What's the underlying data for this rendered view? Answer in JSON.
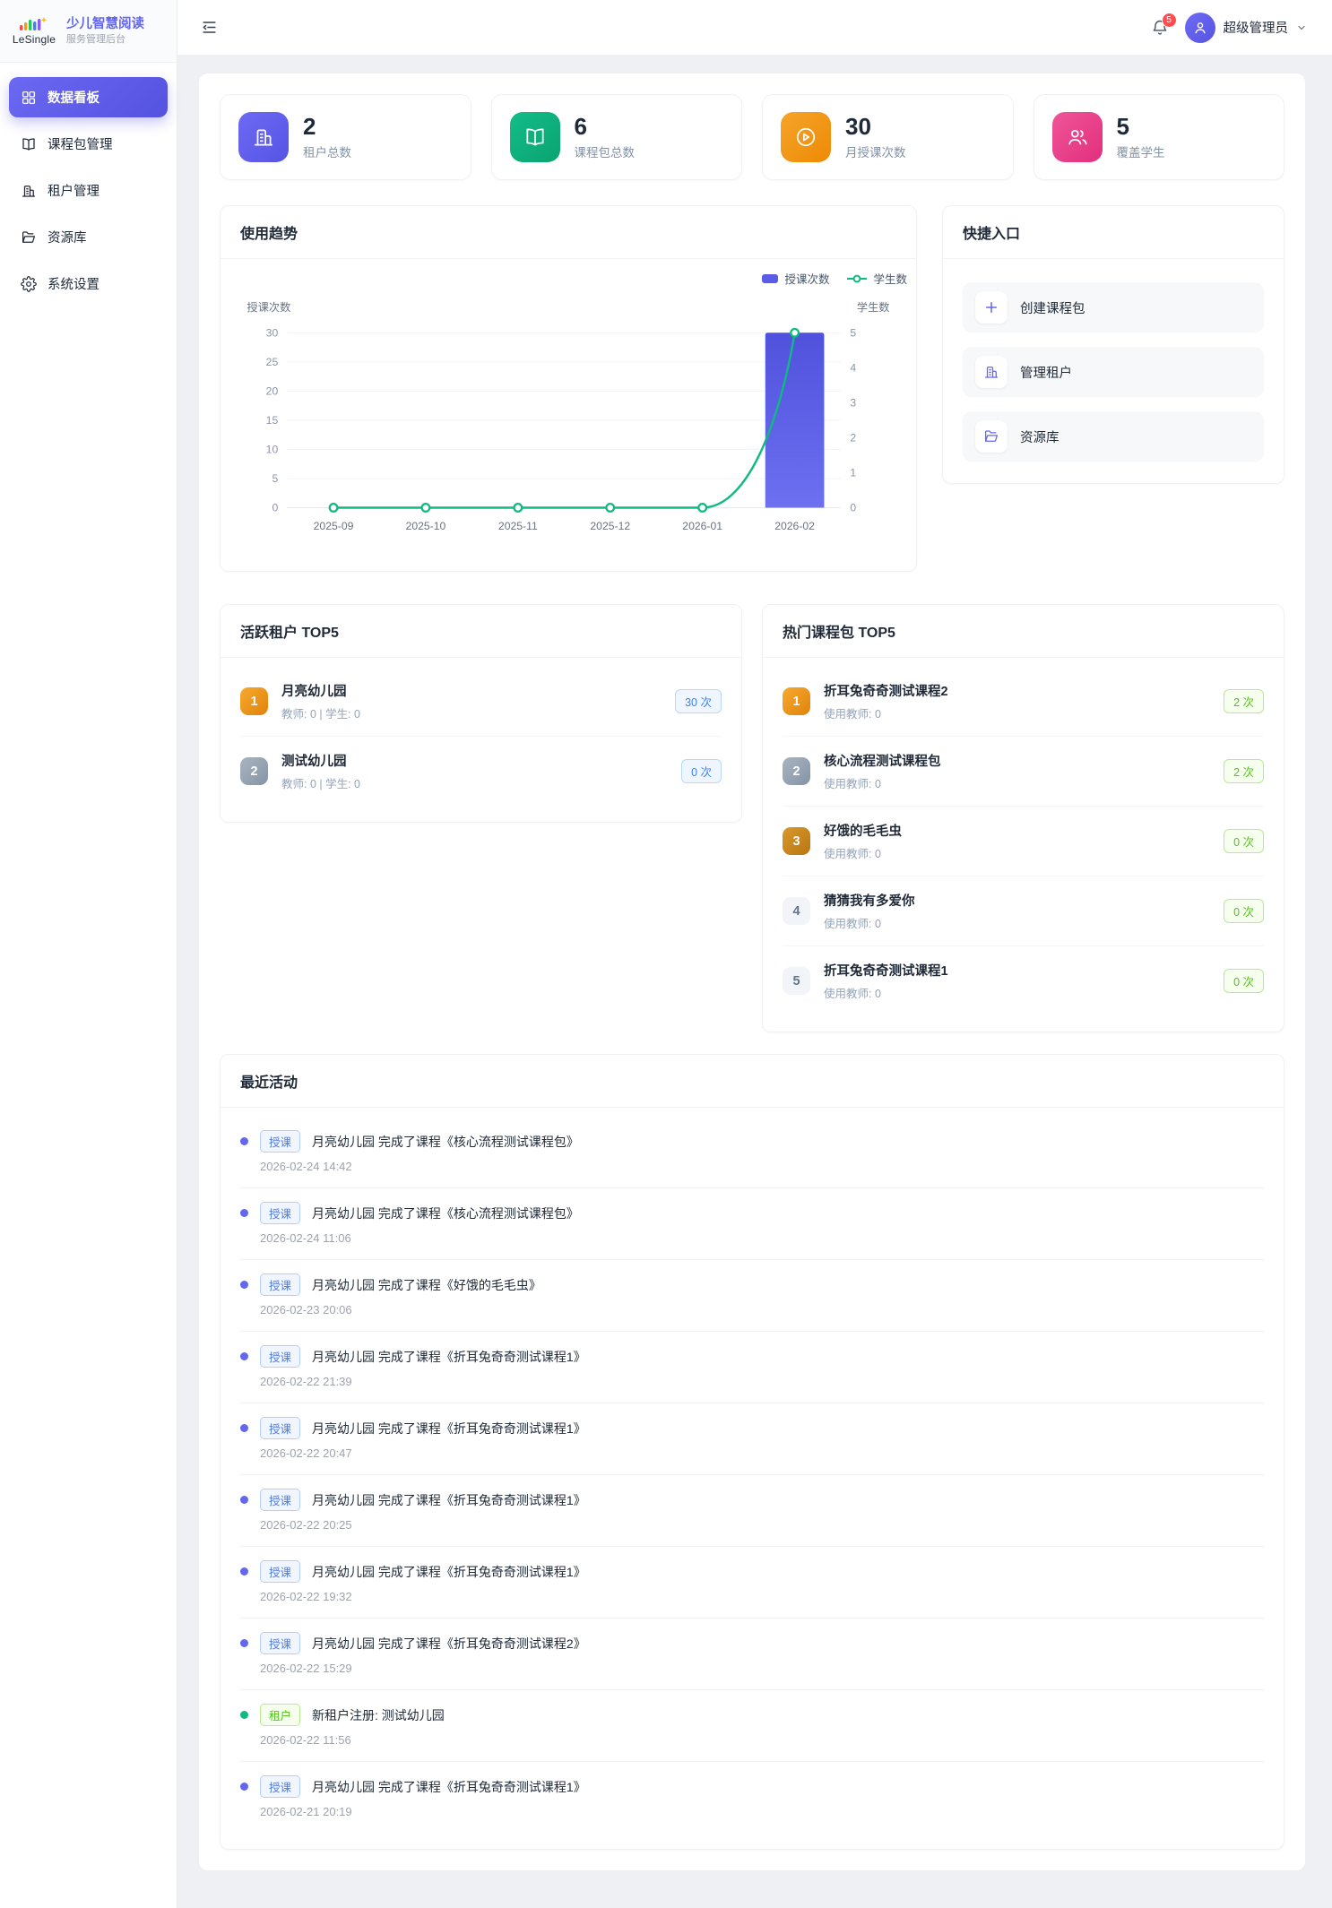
{
  "brand": {
    "logo": "LeSingle",
    "title": "少儿智慧阅读",
    "subtitle": "服务管理后台"
  },
  "sidebar": {
    "items": [
      {
        "label": "数据看板",
        "active": true
      },
      {
        "label": "课程包管理"
      },
      {
        "label": "租户管理"
      },
      {
        "label": "资源库"
      },
      {
        "label": "系统设置"
      }
    ]
  },
  "header": {
    "notification_count": "5",
    "user_name": "超级管理员"
  },
  "stats": [
    {
      "value": "2",
      "label": "租户总数",
      "accent": "#5b5ce6",
      "icon": "building-icon"
    },
    {
      "value": "6",
      "label": "课程包总数",
      "accent": "#10b981",
      "icon": "book-icon"
    },
    {
      "value": "30",
      "label": "月授课次数",
      "accent": "#f59e0b",
      "icon": "play-circle-icon"
    },
    {
      "value": "5",
      "label": "覆盖学生",
      "accent": "#ec4899",
      "icon": "users-icon"
    }
  ],
  "usage_trend": {
    "title": "使用趋势",
    "legend": [
      "授课次数",
      "学生数"
    ]
  },
  "chart_data": {
    "type": "bar",
    "title": "使用趋势",
    "categories": [
      "2025-09",
      "2025-10",
      "2025-11",
      "2025-12",
      "2026-01",
      "2026-02"
    ],
    "series": [
      {
        "name": "授课次数",
        "render": "bar",
        "axis": "left",
        "color": "#5b5ce6",
        "values": [
          0,
          0,
          0,
          0,
          0,
          30
        ]
      },
      {
        "name": "学生数",
        "render": "line",
        "axis": "right",
        "color": "#10b981",
        "values": [
          0,
          0,
          0,
          0,
          0,
          5
        ]
      }
    ],
    "y_left": {
      "label": "授课次数",
      "min": 0,
      "max": 30,
      "ticks": [
        0,
        5,
        10,
        15,
        20,
        25,
        30
      ]
    },
    "y_right": {
      "label": "学生数",
      "min": 0,
      "max": 5,
      "ticks": [
        0,
        1,
        2,
        3,
        4,
        5
      ]
    },
    "grid": true,
    "legend_position": "top-right"
  },
  "quick_entry": {
    "title": "快捷入口",
    "items": [
      {
        "label": "创建课程包"
      },
      {
        "label": "管理租户"
      },
      {
        "label": "资源库"
      }
    ]
  },
  "active_tenants": {
    "title": "活跃租户 TOP5",
    "items": [
      {
        "rank": "1",
        "name": "月亮幼儿园",
        "meta": "教师: 0 | 学生: 0",
        "count": "30 次",
        "pill": "blue"
      },
      {
        "rank": "2",
        "name": "测试幼儿园",
        "meta": "教师: 0 | 学生: 0",
        "count": "0 次",
        "pill": "blue"
      }
    ]
  },
  "hot_packages": {
    "title": "热门课程包 TOP5",
    "items": [
      {
        "rank": "1",
        "name": "折耳兔奇奇测试课程2",
        "meta": "使用教师: 0",
        "count": "2 次",
        "pill": "green"
      },
      {
        "rank": "2",
        "name": "核心流程测试课程包",
        "meta": "使用教师: 0",
        "count": "2 次",
        "pill": "green"
      },
      {
        "rank": "3",
        "name": "好饿的毛毛虫",
        "meta": "使用教师: 0",
        "count": "0 次",
        "pill": "green"
      },
      {
        "rank": "4",
        "name": "猜猜我有多爱你",
        "meta": "使用教师: 0",
        "count": "0 次",
        "pill": "green"
      },
      {
        "rank": "5",
        "name": "折耳兔奇奇测试课程1",
        "meta": "使用教师: 0",
        "count": "0 次",
        "pill": "green"
      }
    ]
  },
  "activities": {
    "title": "最近活动",
    "items": [
      {
        "kind": "teach",
        "badge": "授课",
        "text": "月亮幼儿园 完成了课程《核心流程测试课程包》",
        "time": "2026-02-24 14:42"
      },
      {
        "kind": "teach",
        "badge": "授课",
        "text": "月亮幼儿园 完成了课程《核心流程测试课程包》",
        "time": "2026-02-24 11:06"
      },
      {
        "kind": "teach",
        "badge": "授课",
        "text": "月亮幼儿园 完成了课程《好饿的毛毛虫》",
        "time": "2026-02-23 20:06"
      },
      {
        "kind": "teach",
        "badge": "授课",
        "text": "月亮幼儿园 完成了课程《折耳兔奇奇测试课程1》",
        "time": "2026-02-22 21:39"
      },
      {
        "kind": "teach",
        "badge": "授课",
        "text": "月亮幼儿园 完成了课程《折耳兔奇奇测试课程1》",
        "time": "2026-02-22 20:47"
      },
      {
        "kind": "teach",
        "badge": "授课",
        "text": "月亮幼儿园 完成了课程《折耳兔奇奇测试课程1》",
        "time": "2026-02-22 20:25"
      },
      {
        "kind": "teach",
        "badge": "授课",
        "text": "月亮幼儿园 完成了课程《折耳兔奇奇测试课程1》",
        "time": "2026-02-22 19:32"
      },
      {
        "kind": "teach",
        "badge": "授课",
        "text": "月亮幼儿园 完成了课程《折耳兔奇奇测试课程2》",
        "time": "2026-02-22 15:29"
      },
      {
        "kind": "tenant",
        "badge": "租户",
        "text": "新租户注册: 测试幼儿园",
        "time": "2026-02-22 11:56"
      },
      {
        "kind": "teach",
        "badge": "授课",
        "text": "月亮幼儿园 完成了课程《折耳兔奇奇测试课程1》",
        "time": "2026-02-21 20:19"
      }
    ]
  }
}
